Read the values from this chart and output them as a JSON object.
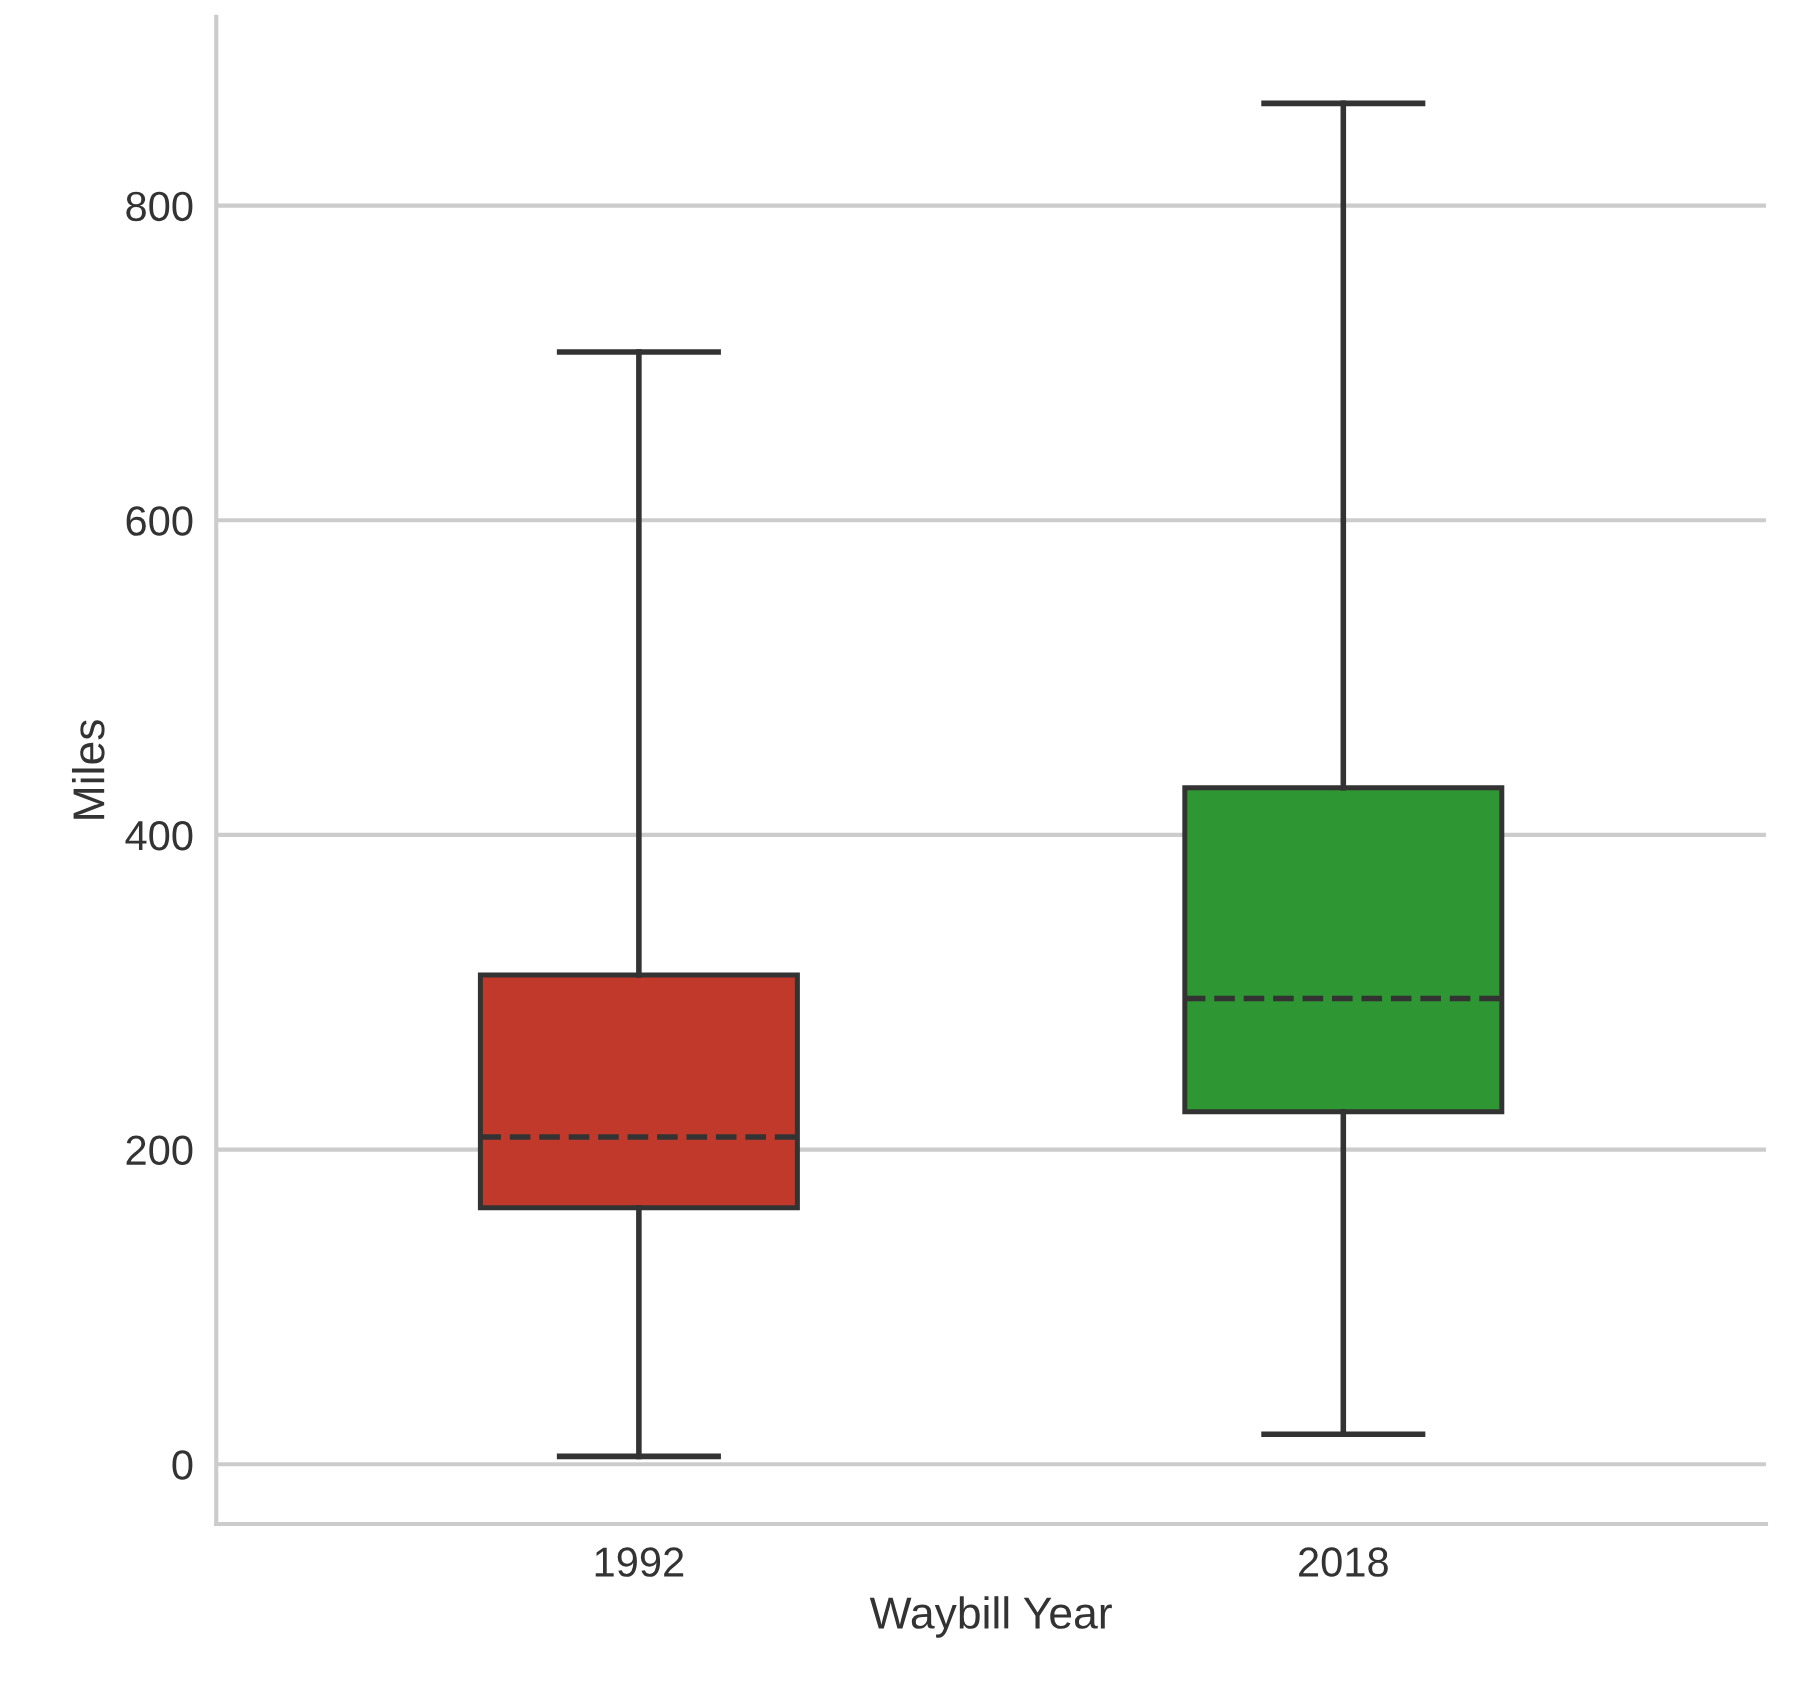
{
  "chart_data": {
    "type": "box",
    "xlabel": "Waybill Year",
    "ylabel": "Miles",
    "categories": [
      "1992",
      "2018"
    ],
    "colors": [
      "#c0392b",
      "#2e9632"
    ],
    "boxes": [
      {
        "low": 5,
        "q1": 163,
        "median": 208,
        "q3": 311,
        "high": 707
      },
      {
        "low": 19,
        "q1": 224,
        "median": 296,
        "q3": 430,
        "high": 865
      }
    ],
    "ylim": [
      -38,
      920
    ],
    "yticks": [
      0,
      200,
      400,
      600,
      800
    ],
    "grid": "y"
  }
}
